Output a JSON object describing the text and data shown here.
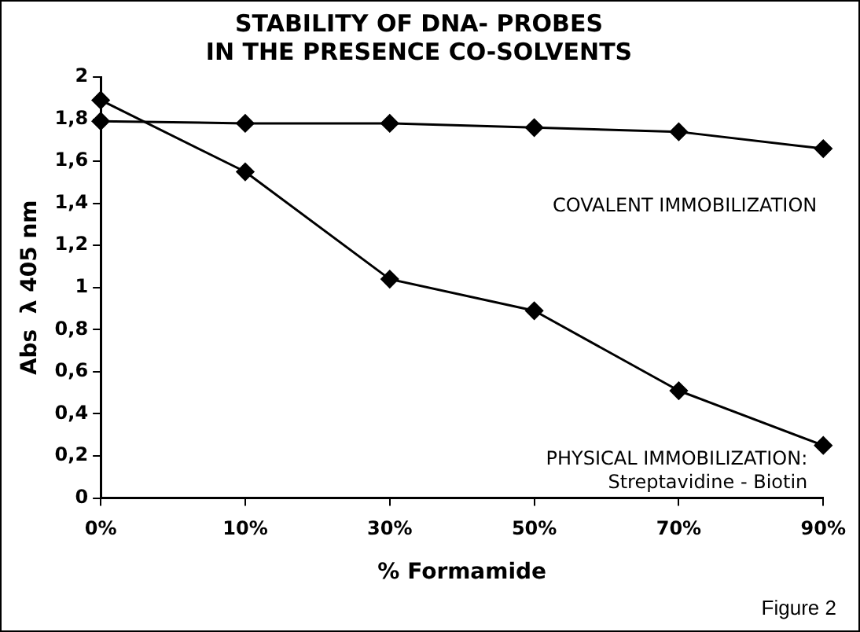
{
  "chart_data": {
    "type": "line",
    "title": "STABILITY OF DNA- PROBES\nIN THE PRESENCE CO-SOLVENTS",
    "xlabel": "% Formamide",
    "ylabel": "Abs  λ 405 nm",
    "categories": [
      "0%",
      "10%",
      "30%",
      "50%",
      "70%",
      "90%"
    ],
    "series": [
      {
        "name": "COVALENT IMMOBILIZATION",
        "color": "#000000",
        "values": [
          1.79,
          1.78,
          1.78,
          1.76,
          1.74,
          1.66
        ]
      },
      {
        "name": "PHYSICAL IMMOBILIZATION:\nStreptavidine - Biotin",
        "color": "#000000",
        "values": [
          1.89,
          1.55,
          1.04,
          0.89,
          0.51,
          0.25
        ]
      }
    ],
    "ylim": [
      0,
      2
    ],
    "yticks": [
      0,
      {
        "value": 0.2,
        "label": "0,2"
      },
      {
        "value": 0.4,
        "label": "0,4"
      },
      {
        "value": 0.6,
        "label": "0,6"
      },
      {
        "value": 0.8,
        "label": "0,8"
      },
      1,
      {
        "value": 1.2,
        "label": "1,2"
      },
      {
        "value": 1.4,
        "label": "1,4"
      },
      {
        "value": 1.6,
        "label": "1,6"
      },
      {
        "value": 1.8,
        "label": "1,8"
      },
      2
    ],
    "grid": false,
    "legend": false,
    "marker": "diamond",
    "line_style": "solid",
    "annotations": [
      "Figure 2"
    ]
  }
}
